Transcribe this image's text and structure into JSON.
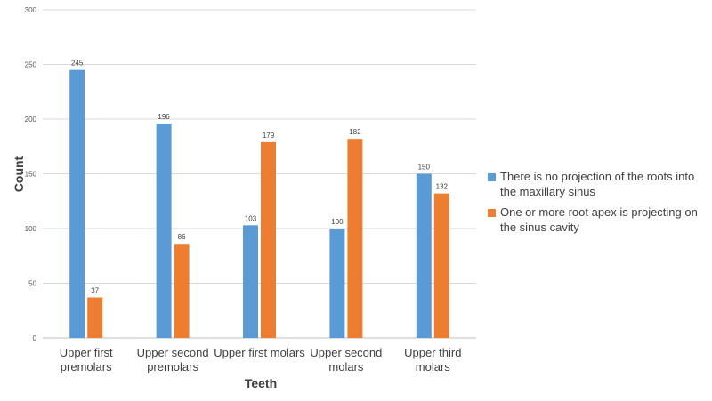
{
  "chart_data": {
    "type": "bar",
    "title": "",
    "xlabel": "Teeth",
    "ylabel": "Count",
    "ylim": [
      0,
      300
    ],
    "yticks": [
      0,
      50,
      100,
      150,
      200,
      250,
      300
    ],
    "grid": true,
    "legend_position": "right",
    "categories": [
      [
        "Upper first",
        "premolars"
      ],
      [
        "Upper second",
        "premolars"
      ],
      [
        "Upper first molars"
      ],
      [
        "Upper second",
        "molars"
      ],
      [
        "Upper third",
        "molars"
      ]
    ],
    "series": [
      {
        "name": "There is no projection of the roots into the maxillary sinus",
        "color": "#5B9BD5",
        "values": [
          245,
          196,
          103,
          100,
          150
        ]
      },
      {
        "name": "One or more root apex is projecting on the sinus cavity",
        "color": "#ED7D31",
        "values": [
          37,
          86,
          179,
          182,
          132
        ]
      }
    ]
  }
}
